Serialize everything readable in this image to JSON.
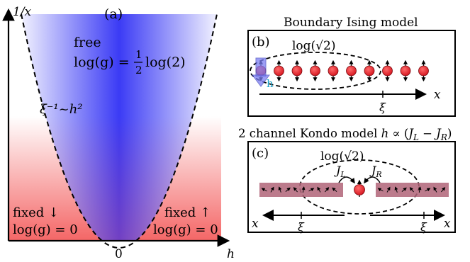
{
  "panel_a": {
    "label": "(a)",
    "y_axis_label": "1/x",
    "x_axis_label": "h",
    "origin_label": "0",
    "free_label": "free",
    "free_formula": {
      "lhs": "log(g) =",
      "num": "1",
      "den": "2",
      "rhs": "log(2)"
    },
    "curve_label": "ξ⁻¹~h²",
    "fixed_down_label": "fixed ↓",
    "fixed_down_formula": "log(g) = 0",
    "fixed_up_label": "fixed ↑",
    "fixed_up_formula": "log(g) = 0",
    "colors": {
      "free": "#3b3bf5",
      "fixed": "#f24b4b"
    }
  },
  "panel_b": {
    "title": "Boundary Ising model",
    "label": "(b)",
    "ellipse_label": "log(√2)",
    "field_label": "h",
    "axis_label": "x",
    "length_label": "ξ",
    "spin_count": 10,
    "spin_color": "#e8202a",
    "field_arrow_color": "#7b7ef2"
  },
  "panel_c": {
    "title": "2 channel Kondo model h ∝ (J_L − J_R)",
    "title_parts": {
      "pre": "2 channel Kondo model ",
      "h": "h",
      "prop": " ∝ (",
      "jl": "J",
      "jl_sub": "L",
      "minus": " − ",
      "jr": "J",
      "jr_sub": "R",
      "post": ")"
    },
    "label": "(c)",
    "ellipse_label": "log(√2)",
    "left_coupling": {
      "main": "J",
      "sub": "L"
    },
    "right_coupling": {
      "main": "J",
      "sub": "R"
    },
    "left_axis_label": "x",
    "right_axis_label": "x",
    "left_length_label": "ξ",
    "right_length_label": "ξ",
    "chain_color": "#b06478"
  }
}
